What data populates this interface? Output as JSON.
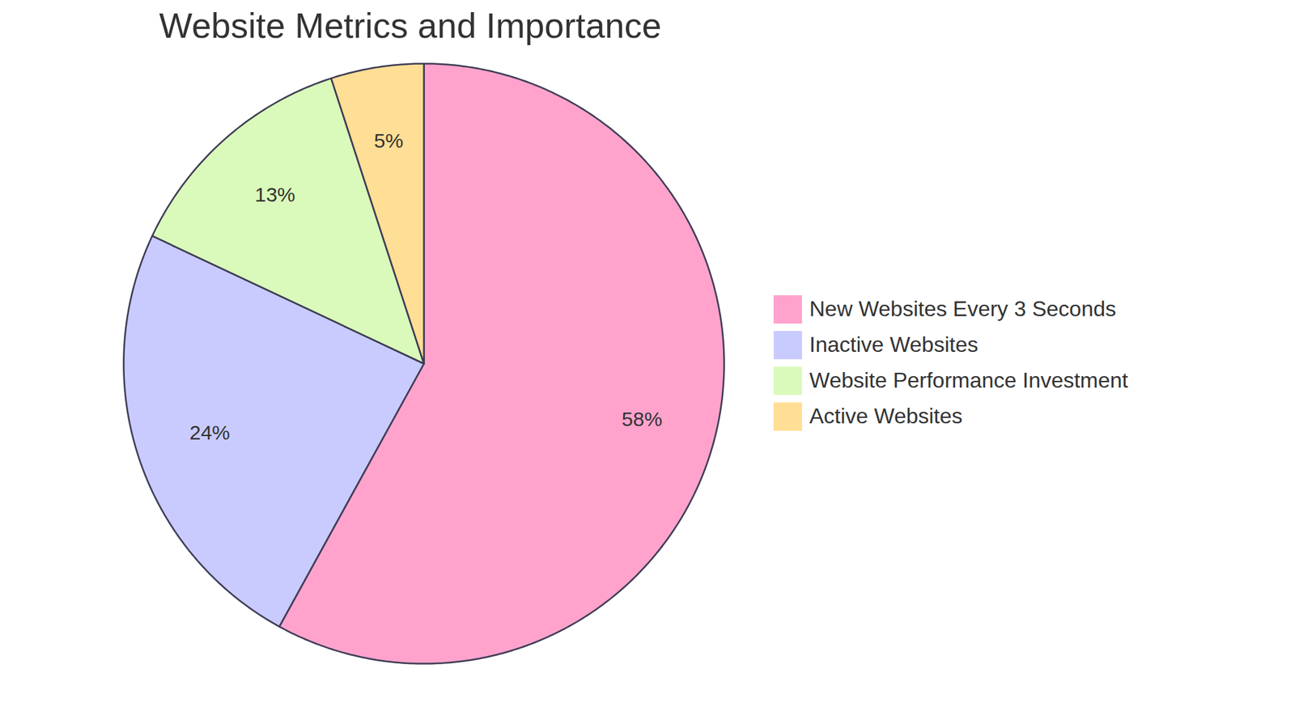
{
  "chart_data": {
    "type": "pie",
    "title": "Website Metrics and Importance",
    "categories": [
      "New Websites Every 3 Seconds",
      "Inactive Websites",
      "Website Performance Investment",
      "Active Websites"
    ],
    "values": [
      58,
      24,
      13,
      5
    ],
    "value_labels": [
      "58%",
      "24%",
      "13%",
      "5%"
    ],
    "colors": [
      "#ffa3cd",
      "#c9cbff",
      "#dafabb",
      "#ffde95"
    ],
    "data_labels": true,
    "legend": "right"
  }
}
